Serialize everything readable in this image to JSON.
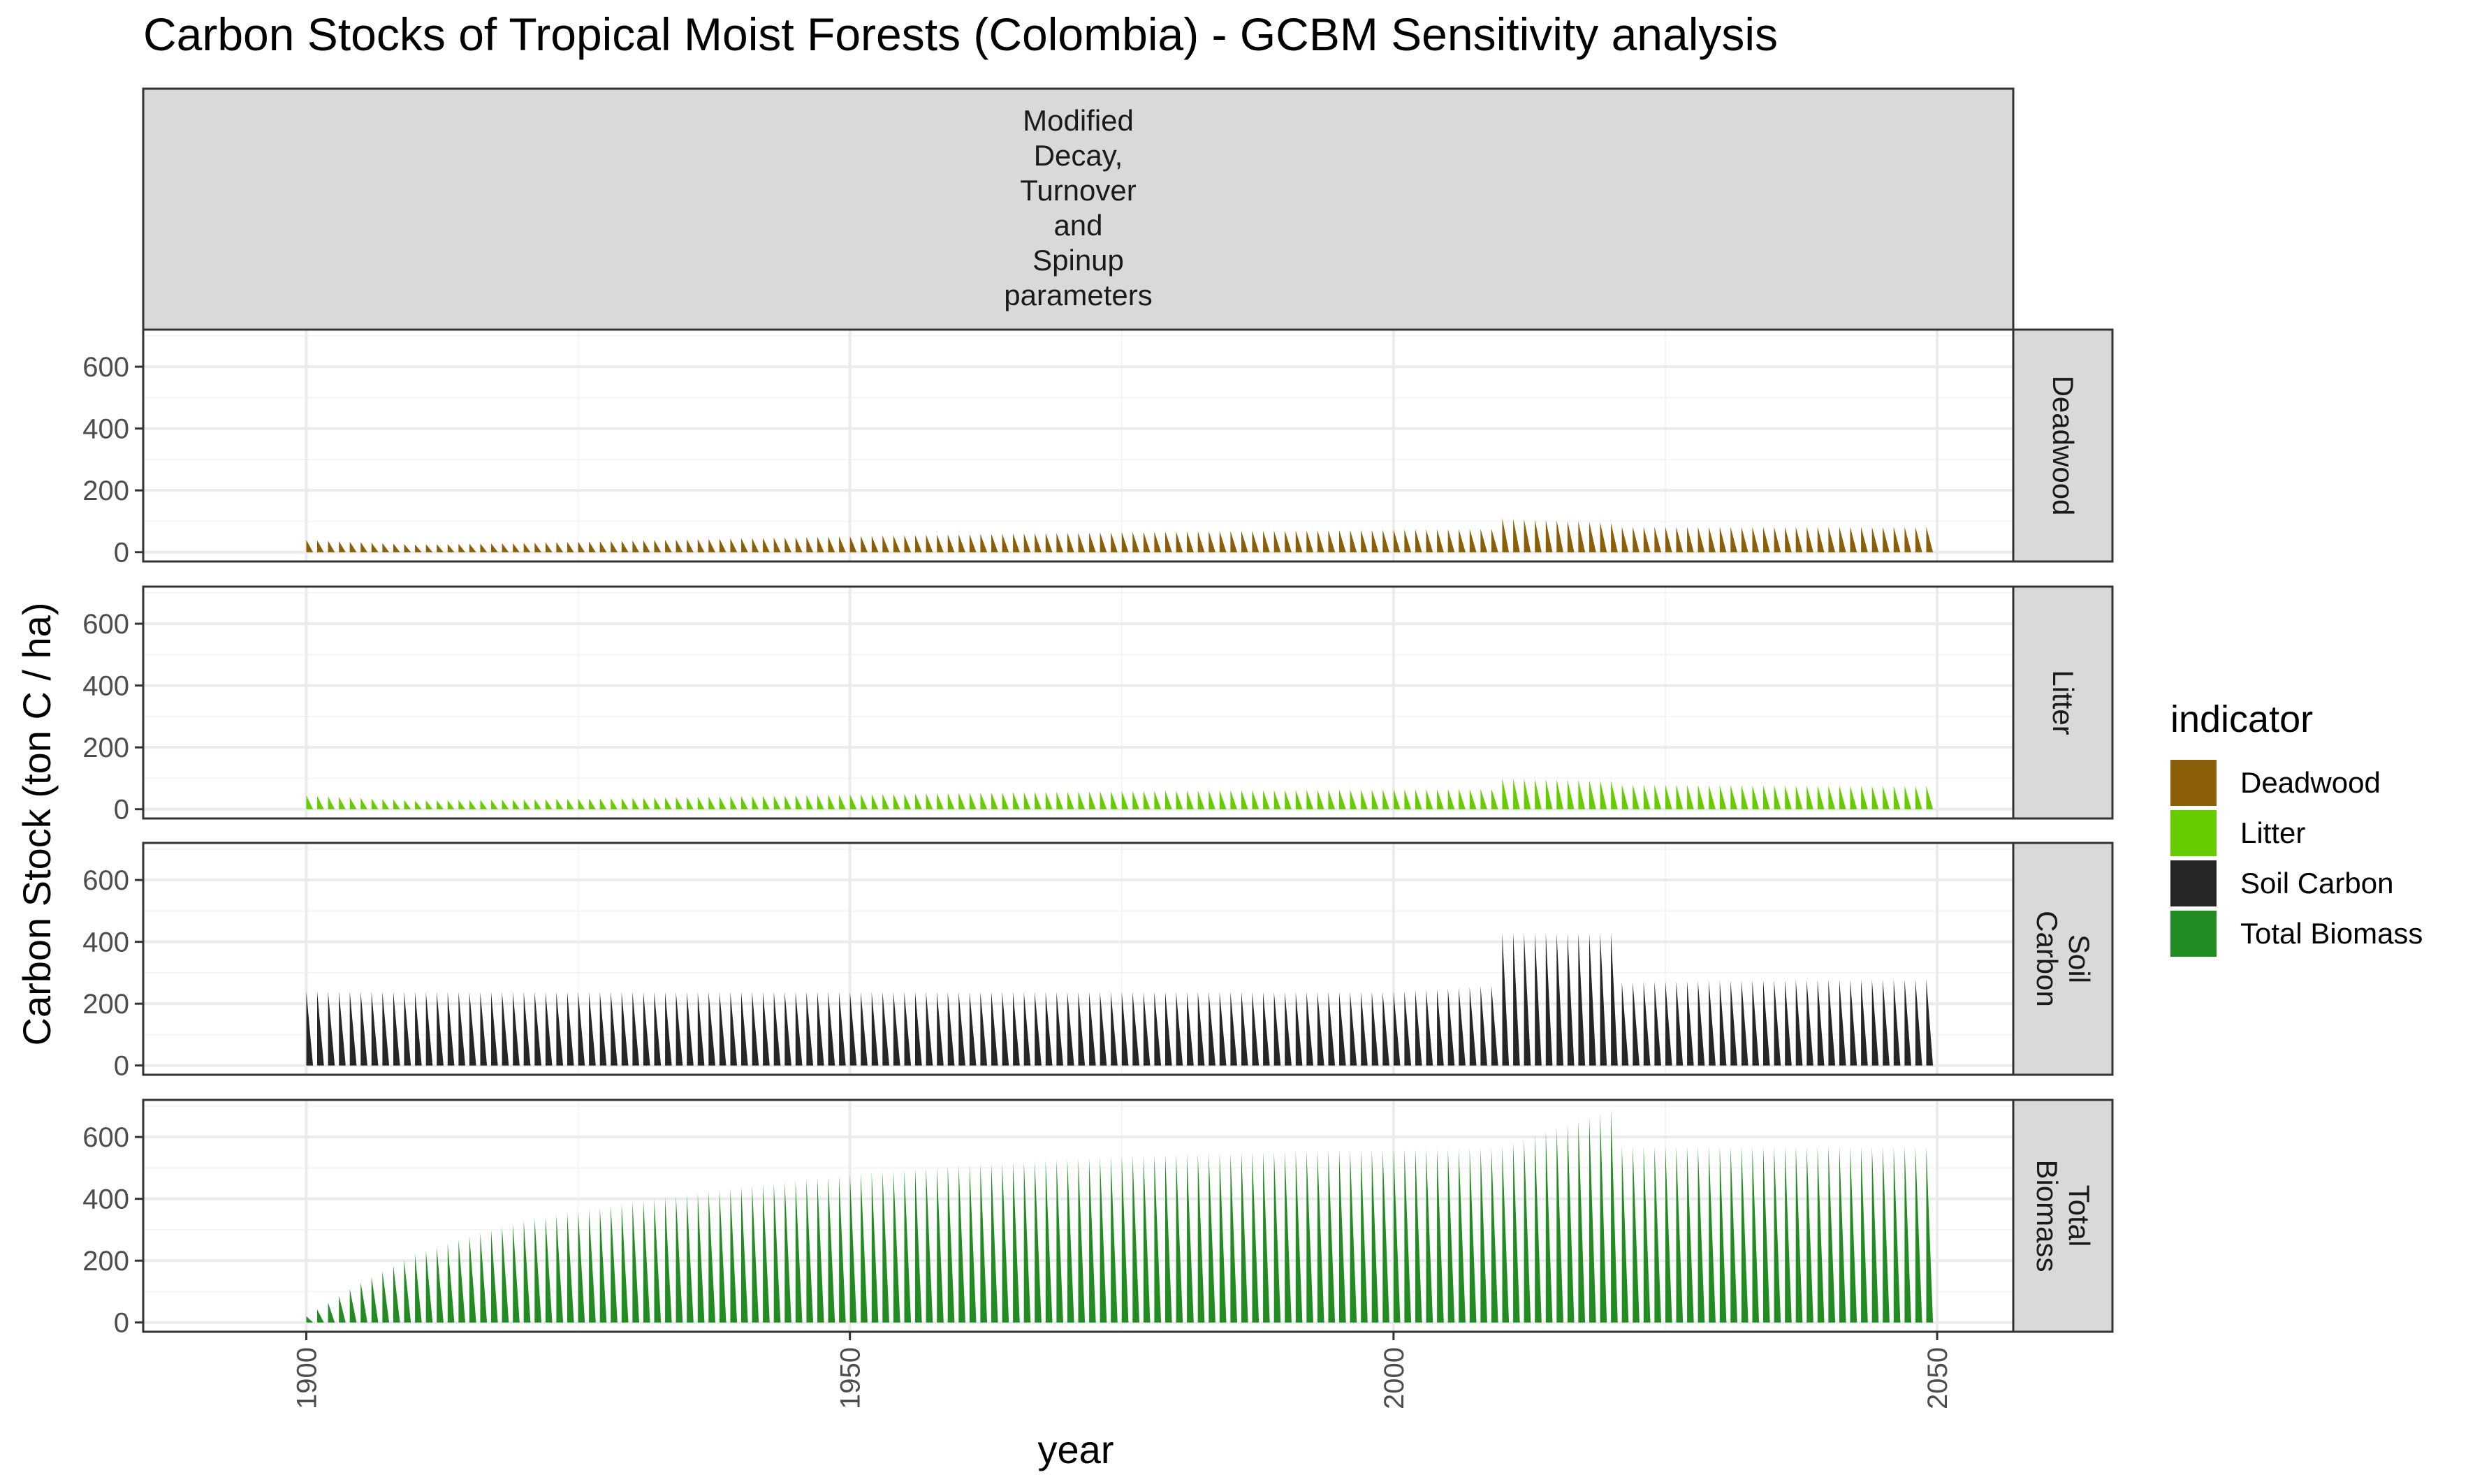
{
  "title": "Carbon Stocks of Tropical Moist Forests (Colombia) - GCBM Sensitivity analysis",
  "facet_column_label": "Modified\nDecay,\nTurnover\nand\nSpinup\nparameters",
  "colors": {
    "Deadwood": "#8B5E08",
    "Litter": "#66CC00",
    "Soil Carbon": "#262626",
    "Total Biomass": "#228B22",
    "panel_strip": "#D9D9D9",
    "grid_major": "#EBEBEB",
    "grid_minor": "#F4F4F4"
  },
  "chart_data": {
    "type": "area",
    "facets": [
      "Deadwood",
      "Litter",
      "Soil Carbon",
      "Total Biomass"
    ],
    "facet_labels": [
      "Deadwood",
      "Litter",
      "Soil\nCarbon",
      "Total\nBiomass"
    ],
    "xlabel": "year",
    "ylabel": "Carbon Stock (ton C / ha)",
    "xlim": [
      1885,
      2057
    ],
    "ylim": [
      -30,
      720
    ],
    "x_ticks": [
      1900,
      1950,
      2000,
      2050
    ],
    "y_ticks": [
      0,
      200,
      400,
      600
    ],
    "grid": true,
    "legend": {
      "title": "indicator",
      "position": "right",
      "entries": [
        "Deadwood",
        "Litter",
        "Soil Carbon",
        "Total Biomass"
      ]
    },
    "series": [
      {
        "name": "Deadwood",
        "values": [
          [
            1900,
            40
          ],
          [
            1910,
            25
          ],
          [
            1920,
            30
          ],
          [
            1930,
            38
          ],
          [
            1940,
            45
          ],
          [
            1950,
            52
          ],
          [
            1960,
            58
          ],
          [
            1970,
            63
          ],
          [
            1980,
            67
          ],
          [
            1990,
            70
          ],
          [
            2000,
            73
          ],
          [
            2009,
            76
          ],
          [
            2010,
            110
          ],
          [
            2020,
            95
          ],
          [
            2021,
            82
          ],
          [
            2030,
            82
          ],
          [
            2040,
            82
          ],
          [
            2050,
            82
          ]
        ]
      },
      {
        "name": "Litter",
        "values": [
          [
            1900,
            45
          ],
          [
            1910,
            28
          ],
          [
            1920,
            32
          ],
          [
            1930,
            37
          ],
          [
            1940,
            42
          ],
          [
            1950,
            48
          ],
          [
            1960,
            53
          ],
          [
            1970,
            57
          ],
          [
            1980,
            60
          ],
          [
            1990,
            62
          ],
          [
            2000,
            64
          ],
          [
            2009,
            66
          ],
          [
            2010,
            100
          ],
          [
            2020,
            92
          ],
          [
            2021,
            80
          ],
          [
            2030,
            78
          ],
          [
            2040,
            76
          ],
          [
            2050,
            75
          ]
        ]
      },
      {
        "name": "Soil Carbon",
        "values": [
          [
            1900,
            240
          ],
          [
            1910,
            238
          ],
          [
            1920,
            238
          ],
          [
            1930,
            238
          ],
          [
            1940,
            238
          ],
          [
            1950,
            238
          ],
          [
            1960,
            238
          ],
          [
            1970,
            238
          ],
          [
            1980,
            238
          ],
          [
            1990,
            238
          ],
          [
            2000,
            238
          ],
          [
            2009,
            260
          ],
          [
            2010,
            430
          ],
          [
            2020,
            430
          ],
          [
            2021,
            270
          ],
          [
            2030,
            275
          ],
          [
            2040,
            278
          ],
          [
            2050,
            280
          ]
        ]
      },
      {
        "name": "Total Biomass",
        "values": [
          [
            1900,
            20
          ],
          [
            1905,
            130
          ],
          [
            1910,
            220
          ],
          [
            1915,
            280
          ],
          [
            1920,
            330
          ],
          [
            1930,
            390
          ],
          [
            1940,
            440
          ],
          [
            1950,
            480
          ],
          [
            1960,
            510
          ],
          [
            1970,
            530
          ],
          [
            1980,
            545
          ],
          [
            1990,
            555
          ],
          [
            2000,
            560
          ],
          [
            2009,
            565
          ],
          [
            2010,
            570
          ],
          [
            2020,
            690
          ],
          [
            2021,
            570
          ],
          [
            2030,
            570
          ],
          [
            2040,
            570
          ],
          [
            2050,
            570
          ]
        ]
      }
    ]
  }
}
